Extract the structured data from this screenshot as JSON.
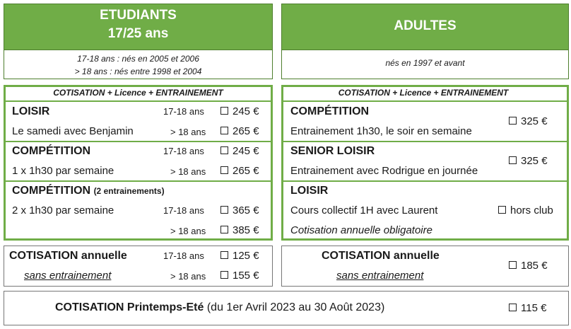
{
  "students": {
    "title": "ETUDIANTS",
    "subtitle": "17/25 ans",
    "birth_line_1": "17-18 ans : nés en 2005 et 2006",
    "birth_line_2": "> 18 ans : nés entre 1998 et 2004"
  },
  "adults": {
    "title": "ADULTES",
    "birth_line": "nés en 1997 et avant"
  },
  "section_header": "COTISATION + Licence + ENTRAINEMENT",
  "student_rows": {
    "loisir": {
      "name": "LOISIR",
      "desc": "Le samedi avec Benjamin",
      "age_a": "17-18 ans",
      "price_a": "245 €",
      "age_b": "> 18 ans",
      "price_b": "265 €"
    },
    "competition": {
      "name": "COMPÉTITION",
      "desc": "1 x 1h30 par semaine",
      "age_a": "17-18 ans",
      "price_a": "245 €",
      "age_b": "> 18 ans",
      "price_b": "265 €"
    },
    "competition2": {
      "name": "COMPÉTITION",
      "note": "(2 entrainements)",
      "desc": "2 x 1h30 par semaine",
      "age_a": "17-18 ans",
      "price_a": "365 €",
      "age_b": "> 18 ans",
      "price_b": "385 €"
    }
  },
  "adult_rows": {
    "competition": {
      "name": "COMPÉTITION",
      "desc": "Entrainement 1h30, le soir en semaine",
      "price": "325 €"
    },
    "senior_loisir": {
      "name": "SENIOR LOISIR",
      "desc": "Entrainement avec Rodrigue en journée",
      "price": "325 €"
    },
    "loisir": {
      "name": "LOISIR",
      "desc": "Cours collectif 1H avec Laurent",
      "note": "Cotisation annuelle obligatoire",
      "price": "hors club"
    }
  },
  "student_annual": {
    "title": "COTISATION annuelle",
    "subtitle": "sans entrainement",
    "age_a": "17-18 ans",
    "price_a": "125 €",
    "age_b": "> 18 ans",
    "price_b": "155 €"
  },
  "adult_annual": {
    "title": "COTISATION annuelle",
    "subtitle": "sans entrainement",
    "price": "185 €"
  },
  "spring": {
    "title": "COTISATION Printemps-Eté",
    "period": "(du 1er Avril 2023 au 30 Août 2023)",
    "price": "115 €"
  }
}
